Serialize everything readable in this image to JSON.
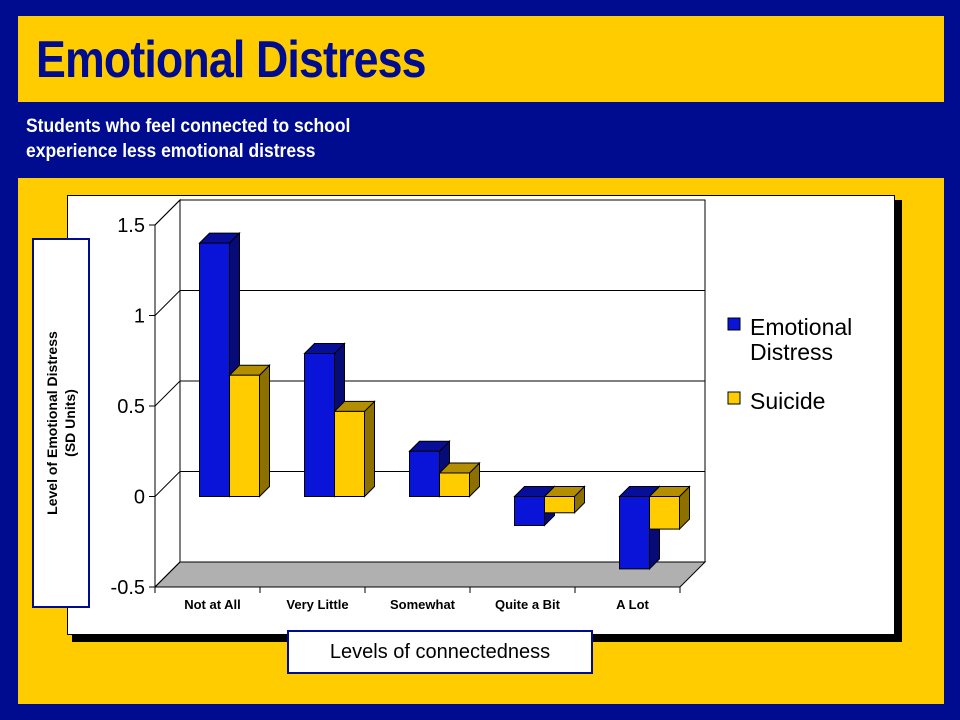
{
  "slide": {
    "title": "Emotional Distress",
    "subtitle_line1": "Students who feel connected to school",
    "subtitle_line2": "experience less emotional distress"
  },
  "colors": {
    "background": "#000c8f",
    "band": "#ffcc00",
    "series_emotional": "#0a14d8",
    "series_suicide": "#ffcc00"
  },
  "chart_data": {
    "type": "bar",
    "style": "3d-clustered",
    "categories": [
      "Not at All",
      "Very Little",
      "Somewhat",
      "Quite a Bit",
      "A Lot"
    ],
    "series": [
      {
        "name": "Emotional Distress",
        "values": [
          1.4,
          0.79,
          0.25,
          -0.16,
          -0.4
        ]
      },
      {
        "name": "Suicide",
        "values": [
          0.67,
          0.47,
          0.13,
          -0.09,
          -0.18
        ]
      }
    ],
    "ylim": [
      -0.5,
      1.5
    ],
    "yticks": [
      -0.5,
      0,
      0.5,
      1,
      1.5
    ],
    "ytick_labels": [
      "-0.5",
      "0",
      "0.5",
      "1",
      "1.5"
    ],
    "ylabel_line1": "Level of Emotional Distress",
    "ylabel_line2": "(SD Units)",
    "xlabel": "Levels of connectedness",
    "grid": true,
    "legend_position": "right",
    "legend": [
      {
        "line1": "Emotional",
        "line2": "Distress"
      },
      {
        "line1": "Suicide",
        "line2": ""
      }
    ]
  }
}
